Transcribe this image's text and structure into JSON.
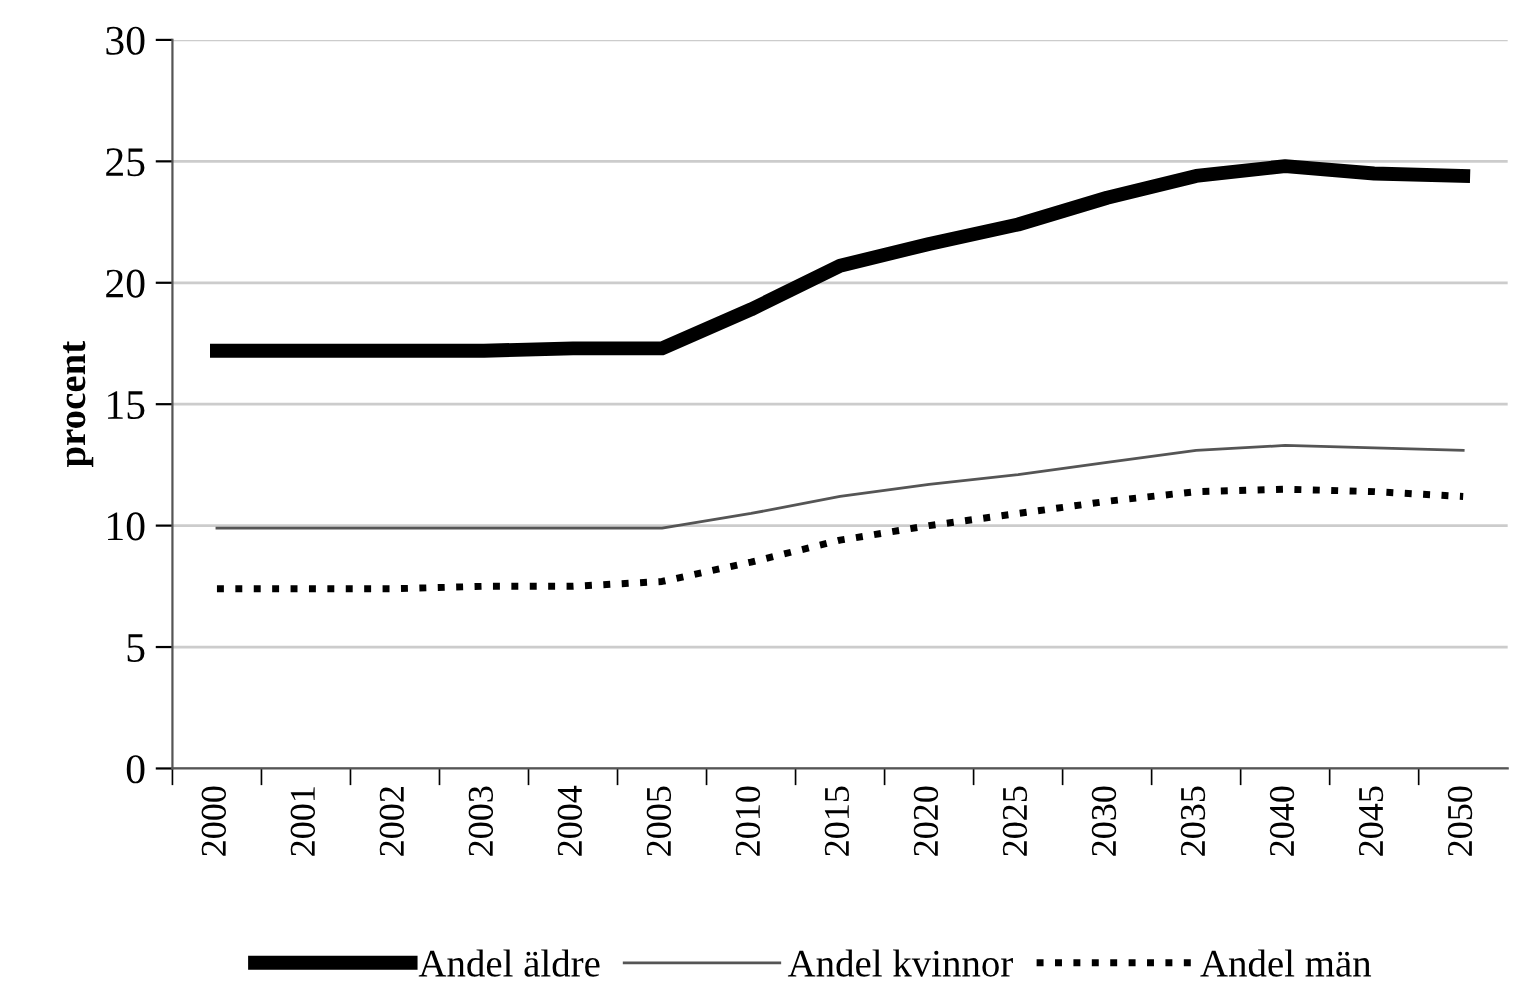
{
  "chart_data": {
    "type": "line",
    "ylabel": "procent",
    "categories": [
      "2000",
      "2001",
      "2002",
      "2003",
      "2004",
      "2005",
      "2010",
      "2015",
      "2020",
      "2025",
      "2030",
      "2035",
      "2040",
      "2045",
      "2050"
    ],
    "series": [
      {
        "name": "Andel äldre",
        "color": "#000000",
        "line_style": "solid",
        "values": [
          17.2,
          17.2,
          17.2,
          17.2,
          17.3,
          17.3,
          18.9,
          20.7,
          21.6,
          22.4,
          23.5,
          24.4,
          24.8,
          24.5,
          24.4
        ]
      },
      {
        "name": "Andel kvinnor",
        "color": "#555555",
        "line_style": "solid",
        "values": [
          9.9,
          9.9,
          9.9,
          9.9,
          9.9,
          9.9,
          10.5,
          11.2,
          11.7,
          12.1,
          12.6,
          13.1,
          13.3,
          13.2,
          13.1
        ]
      },
      {
        "name": "Andel män",
        "color": "#000000",
        "line_style": "dotted",
        "values": [
          7.4,
          7.4,
          7.4,
          7.5,
          7.5,
          7.7,
          8.5,
          9.4,
          10.0,
          10.5,
          11.0,
          11.4,
          11.5,
          11.4,
          11.2
        ]
      }
    ],
    "ylim": [
      0,
      30
    ],
    "yticks": [
      0,
      5,
      10,
      15,
      20,
      25,
      30
    ],
    "grid": "y",
    "legend": "bottom",
    "marker": "none"
  }
}
